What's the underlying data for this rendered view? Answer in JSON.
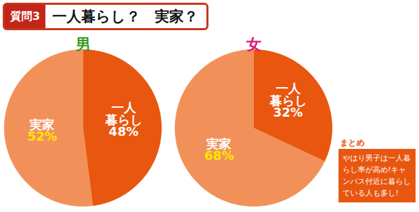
{
  "header": {
    "badge": "質問3",
    "title": "一人暮らし？　実家？"
  },
  "chart_data": [
    {
      "type": "pie",
      "title": "男",
      "categories": [
        "一人暮らし",
        "実家"
      ],
      "values": [
        48,
        52
      ],
      "value_labels": [
        "48%",
        "52%"
      ],
      "colors": [
        "#e8560f",
        "#f19159"
      ],
      "data_labels": true
    },
    {
      "type": "pie",
      "title": "女",
      "categories": [
        "一人暮らし",
        "実家"
      ],
      "values": [
        32,
        68
      ],
      "value_labels": [
        "32%",
        "68%"
      ],
      "colors": [
        "#e8560f",
        "#f19159"
      ],
      "data_labels": true
    }
  ],
  "summary": {
    "title": "まとめ",
    "text": "やはり男子は一人暮らし率が高め!キャンパス付近に暮らしている人も多し!"
  }
}
